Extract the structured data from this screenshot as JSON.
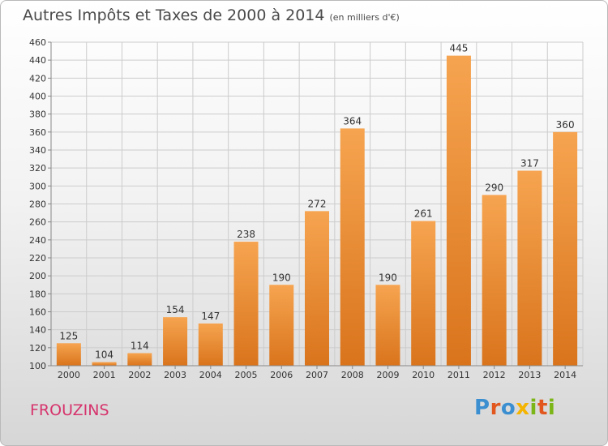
{
  "header": {
    "title": "Autres Impôts et Taxes de 2000 à 2014",
    "unit": "(en milliers d'€)"
  },
  "footer": {
    "place": "FROUZINS",
    "brand": "Proxiti"
  },
  "colors": {
    "bar_top": "#f6a450",
    "bar_bottom": "#d9741c",
    "grid": "#cccccc",
    "text": "#333333"
  },
  "chart_data": {
    "type": "bar",
    "categories": [
      "2000",
      "2001",
      "2002",
      "2003",
      "2004",
      "2005",
      "2006",
      "2007",
      "2008",
      "2009",
      "2010",
      "2011",
      "2012",
      "2013",
      "2014"
    ],
    "values": [
      125,
      104,
      114,
      154,
      147,
      238,
      190,
      272,
      364,
      190,
      261,
      445,
      290,
      317,
      360
    ],
    "ylim": [
      100,
      460
    ],
    "yticks": [
      100,
      120,
      140,
      160,
      180,
      200,
      220,
      240,
      260,
      280,
      300,
      320,
      340,
      360,
      380,
      400,
      420,
      440,
      460
    ],
    "grid": true,
    "xlabel": "",
    "ylabel": ""
  }
}
